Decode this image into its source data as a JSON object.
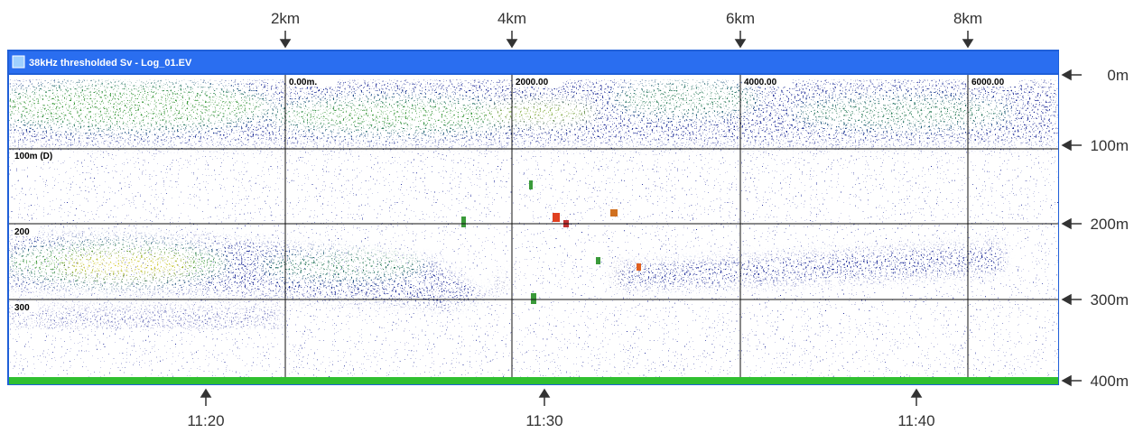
{
  "window": {
    "title": "38kHz thresholded Sv - Log_01.EV"
  },
  "distance_labels": [
    "2km",
    "4km",
    "6km",
    "8km"
  ],
  "depth_labels": [
    "0m",
    "100m",
    "200m",
    "300m",
    "400m"
  ],
  "time_labels": [
    "11:20",
    "11:30",
    "11:40"
  ],
  "grid_labels": {
    "distance": [
      "0.00m.",
      "2000.00",
      "4000.00",
      "6000.00"
    ],
    "depth": [
      "100m (D)",
      "200",
      "300"
    ]
  }
}
